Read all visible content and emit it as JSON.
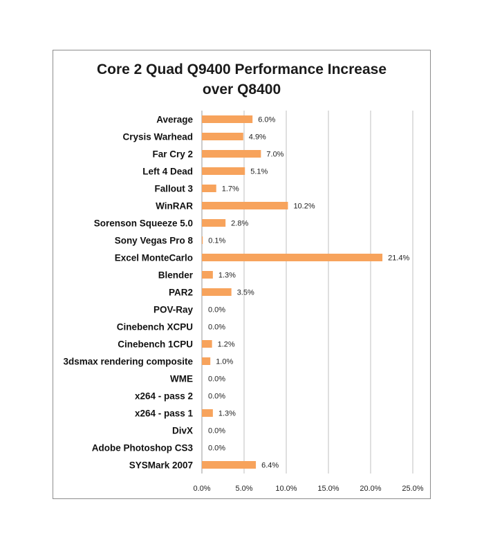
{
  "chart_data": {
    "type": "bar",
    "orientation": "horizontal",
    "title_lines": [
      "Core 2 Quad Q9400 Performance Increase",
      "over Q8400"
    ],
    "categories": [
      "Average",
      "Crysis Warhead",
      "Far Cry 2",
      "Left 4 Dead",
      "Fallout 3",
      "WinRAR",
      "Sorenson Squeeze 5.0",
      "Sony Vegas Pro 8",
      "Excel MonteCarlo",
      "Blender",
      "PAR2",
      "POV-Ray",
      "Cinebench XCPU",
      "Cinebench 1CPU",
      "3dsmax rendering composite",
      "WME",
      "x264 - pass 2",
      "x264 - pass 1",
      "DivX",
      "Adobe Photoshop CS3",
      "SYSMark 2007"
    ],
    "values": [
      6.0,
      4.9,
      7.0,
      5.1,
      1.7,
      10.2,
      2.8,
      0.1,
      21.4,
      1.3,
      3.5,
      0.0,
      0.0,
      1.2,
      1.0,
      0.0,
      0.0,
      1.3,
      0.0,
      0.0,
      6.4
    ],
    "value_labels": [
      "6.0%",
      "4.9%",
      "7.0%",
      "5.1%",
      "1.7%",
      "10.2%",
      "2.8%",
      "0.1%",
      "21.4%",
      "1.3%",
      "3.5%",
      "0.0%",
      "0.0%",
      "1.2%",
      "1.0%",
      "0.0%",
      "0.0%",
      "1.3%",
      "0.0%",
      "0.0%",
      "6.4%"
    ],
    "xlim": [
      0,
      25
    ],
    "ticks": [
      0,
      5,
      10,
      15,
      20,
      25
    ],
    "tick_labels": [
      "0.0%",
      "5.0%",
      "10.0%",
      "15.0%",
      "20.0%",
      "25.0%"
    ],
    "grid": "vertical",
    "bar_color": "#f7a35c",
    "grid_color": "#bfbfbf"
  }
}
